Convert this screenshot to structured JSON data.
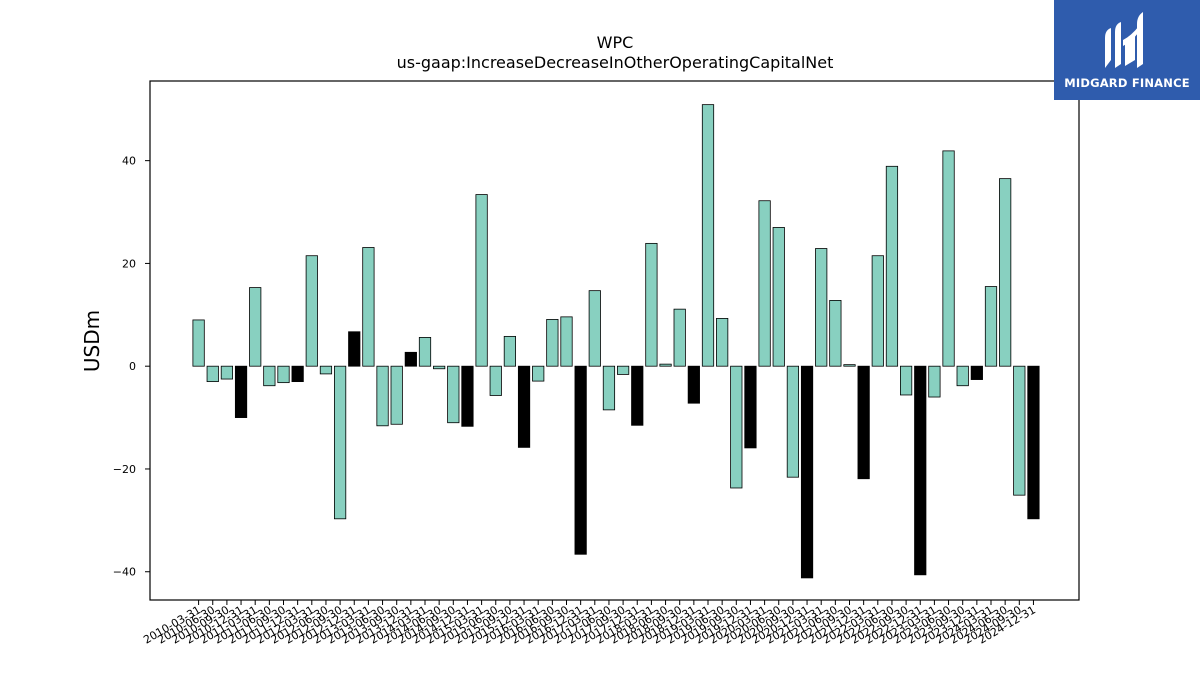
{
  "chart_data": {
    "type": "bar",
    "title": "WPC",
    "subtitle": "us-gaap:IncreaseDecreaseInOtherOperatingCapitalNet",
    "ylabel": "USDm",
    "xlabel": "",
    "ylim": [
      -45.5,
      55.5
    ],
    "yticks": [
      -40,
      -20,
      0,
      20,
      40
    ],
    "grid": false,
    "first_tick_label": "2010-03-31",
    "categories": [
      "2010-03-31",
      "2010-06-30",
      "2010-09-30",
      "2010-12-31",
      "2011-03-31",
      "2011-06-30",
      "2011-09-30",
      "2011-12-31",
      "2012-03-31",
      "2012-06-30",
      "2012-09-30",
      "2012-12-31",
      "2013-03-31",
      "2013-06-30",
      "2013-09-30",
      "2013-12-31",
      "2014-03-31",
      "2014-06-30",
      "2014-09-30",
      "2014-12-31",
      "2015-03-31",
      "2015-06-30",
      "2015-09-30",
      "2015-12-31",
      "2016-03-31",
      "2016-06-30",
      "2016-09-30",
      "2016-12-31",
      "2017-03-31",
      "2017-06-30",
      "2017-09-30",
      "2017-12-31",
      "2018-03-31",
      "2018-06-30",
      "2018-09-30",
      "2018-12-31",
      "2019-03-31",
      "2019-06-30",
      "2019-09-30",
      "2019-12-31",
      "2020-03-31",
      "2020-06-30",
      "2020-09-30",
      "2020-12-31",
      "2021-03-31",
      "2021-06-30",
      "2021-09-30",
      "2021-12-31",
      "2022-03-31",
      "2022-06-30",
      "2022-09-30",
      "2022-12-31",
      "2023-03-31",
      "2023-06-30",
      "2023-09-30",
      "2023-12-31",
      "2024-03-31",
      "2024-06-30",
      "2024-09-30",
      "2024-12-31"
    ],
    "values": [
      9.0,
      -3.0,
      -2.5,
      -10.0,
      15.3,
      -3.8,
      -3.2,
      -3.0,
      21.5,
      -1.5,
      -29.7,
      6.7,
      23.1,
      -11.6,
      -11.3,
      2.7,
      5.6,
      -0.5,
      -11.0,
      -11.7,
      33.4,
      -5.7,
      5.8,
      -15.8,
      -2.9,
      9.1,
      9.6,
      -36.6,
      14.7,
      -8.5,
      -1.6,
      -11.5,
      23.9,
      0.4,
      11.1,
      -7.2,
      50.9,
      9.3,
      -23.7,
      -15.9,
      32.2,
      27.0,
      -21.6,
      -41.2,
      22.9,
      12.8,
      0.3,
      -21.9,
      21.5,
      38.9,
      -5.6,
      -40.6,
      -6.0,
      41.9,
      -3.8,
      -2.6,
      15.5,
      36.5,
      -25.1,
      -29.7
    ],
    "colors": {
      "q4_bar": "#000000",
      "other_bar": "#88d0c0",
      "edge": "#000000"
    }
  },
  "logo": {
    "text": "MIDGARD FINANCE",
    "bg": "#2f5cad"
  }
}
